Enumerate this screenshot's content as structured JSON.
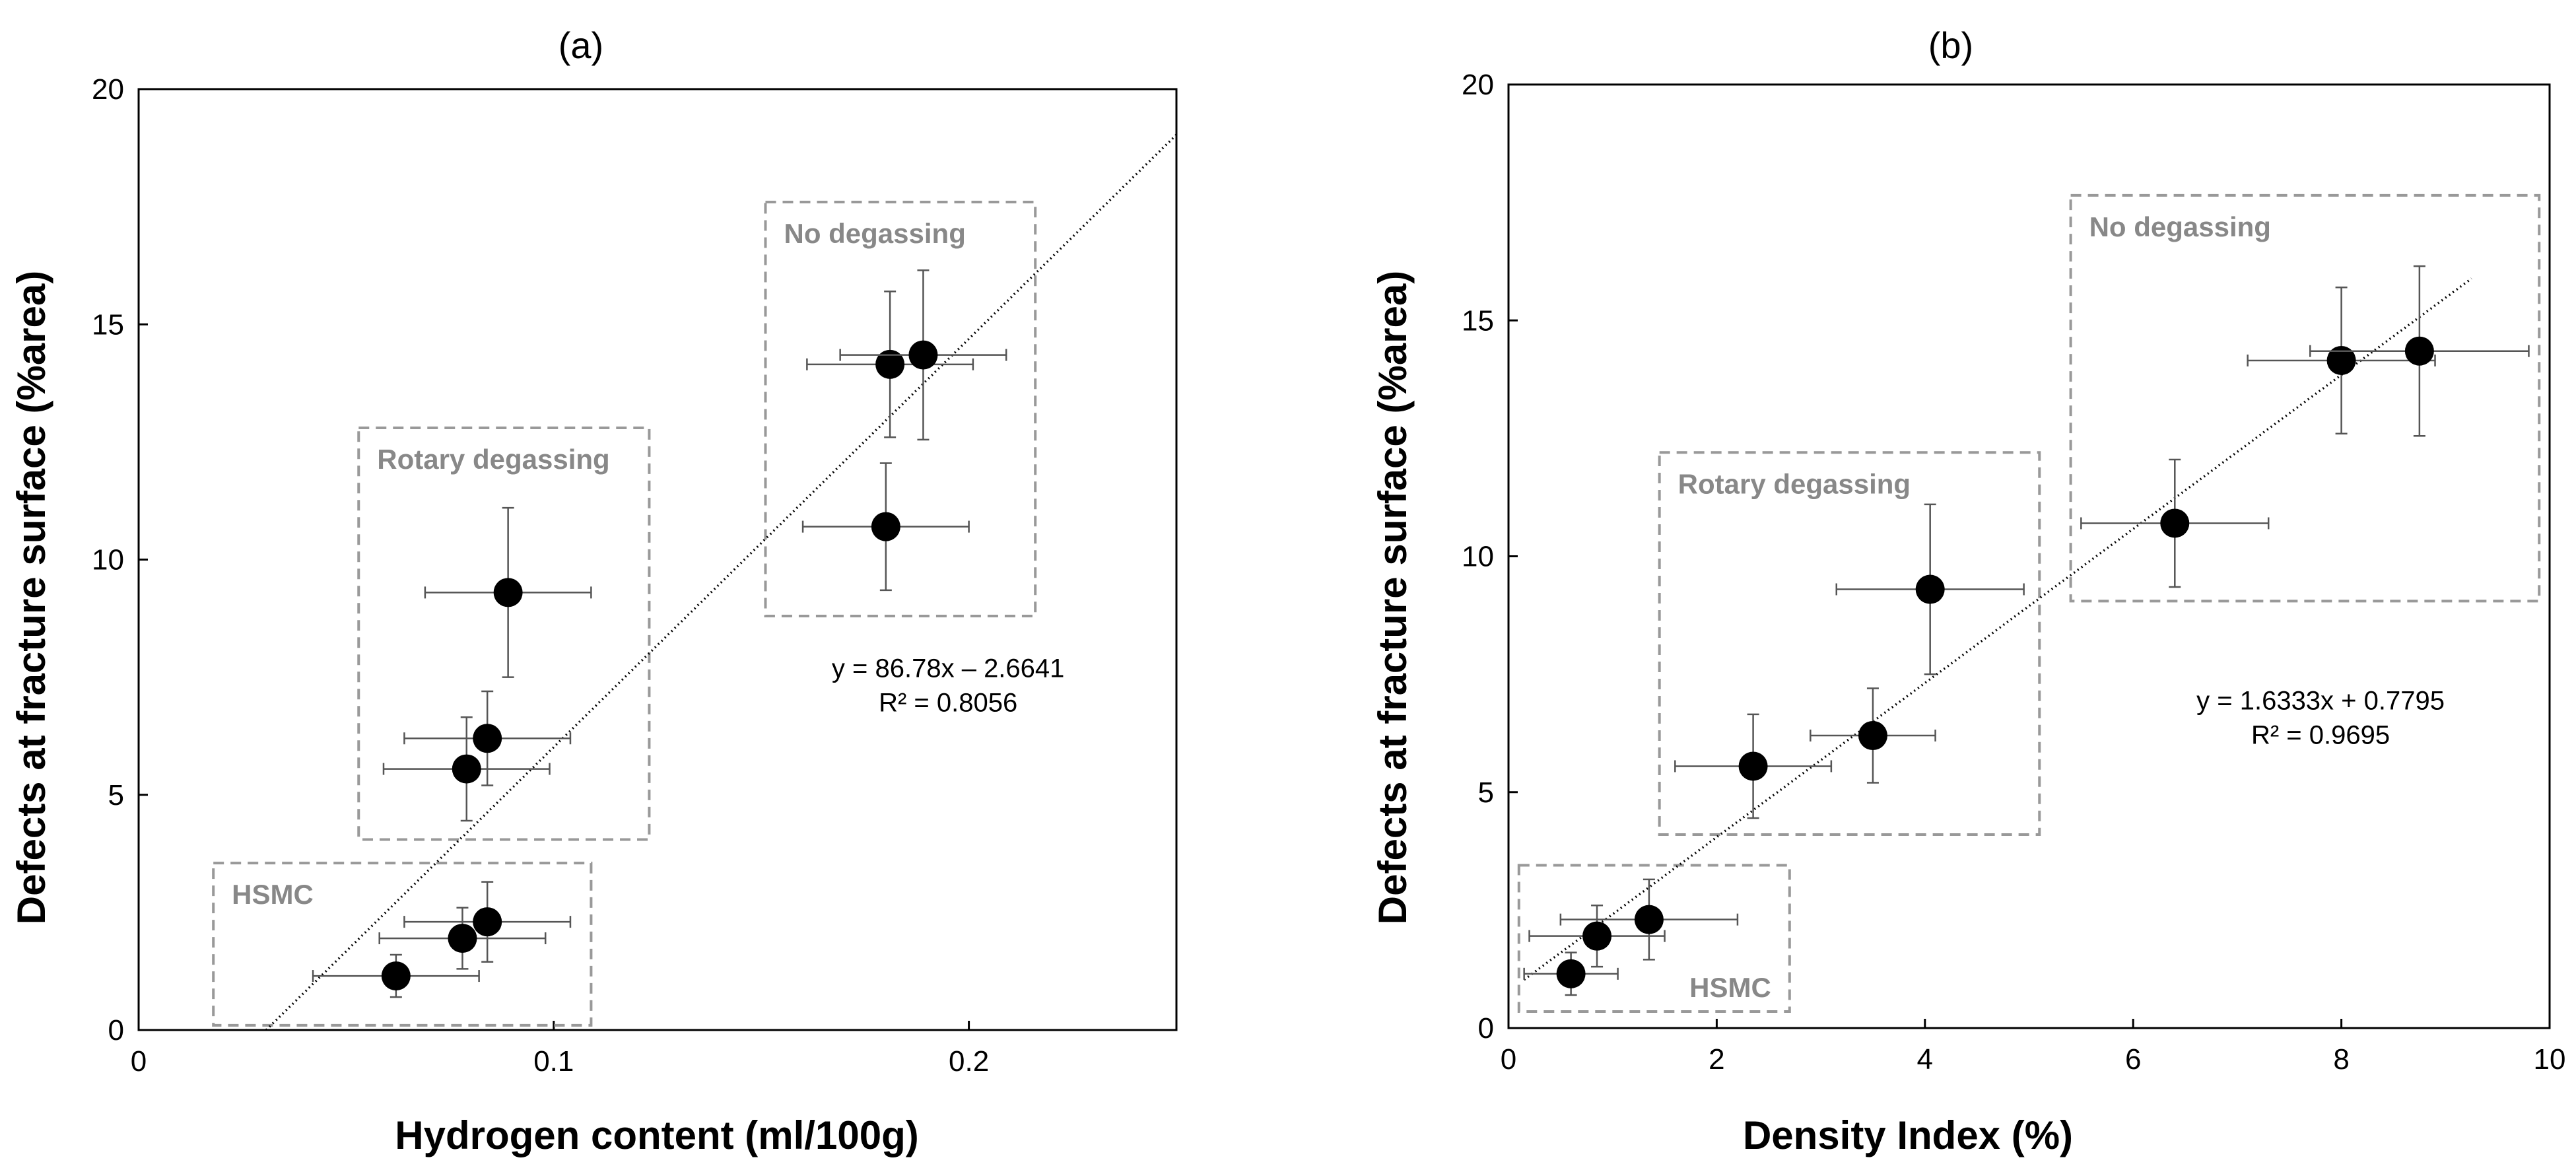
{
  "figure": {
    "colors": {
      "marker": "#000000",
      "errorbar": "#555555",
      "group_box": "#999999",
      "group_label": "#888888",
      "trendline": "#000000",
      "axis": "#000000"
    }
  },
  "chart_data": [
    {
      "type": "scatter",
      "panel_label": "(a)",
      "title": "(a)",
      "xlabel": "Hydrogen content (ml/100g)",
      "ylabel": "Defects at fracture surface (%area)",
      "xlim": [
        0,
        0.25
      ],
      "ylim": [
        0,
        20
      ],
      "xticks": [
        0,
        0.1,
        0.2
      ],
      "xtick_labels": [
        "0",
        "0.1",
        "0.2"
      ],
      "yticks": [
        0,
        5,
        10,
        15,
        20
      ],
      "ytick_labels": [
        "0",
        "5",
        "10",
        "15",
        "20"
      ],
      "grid": false,
      "points": [
        {
          "group": "HSMC",
          "x": 0.062,
          "y": 1.15,
          "xerr": 0.02,
          "yerr": 0.45
        },
        {
          "group": "HSMC",
          "x": 0.078,
          "y": 1.95,
          "xerr": 0.02,
          "yerr": 0.65
        },
        {
          "group": "HSMC",
          "x": 0.084,
          "y": 2.3,
          "xerr": 0.02,
          "yerr": 0.85
        },
        {
          "group": "Rotary degassing",
          "x": 0.079,
          "y": 5.55,
          "xerr": 0.02,
          "yerr": 1.1
        },
        {
          "group": "Rotary degassing",
          "x": 0.084,
          "y": 6.2,
          "xerr": 0.02,
          "yerr": 1.0
        },
        {
          "group": "Rotary degassing",
          "x": 0.089,
          "y": 9.3,
          "xerr": 0.02,
          "yerr": 1.8
        },
        {
          "group": "No degassing",
          "x": 0.18,
          "y": 10.7,
          "xerr": 0.02,
          "yerr": 1.35
        },
        {
          "group": "No degassing",
          "x": 0.181,
          "y": 14.15,
          "xerr": 0.02,
          "yerr": 1.55
        },
        {
          "group": "No degassing",
          "x": 0.189,
          "y": 14.35,
          "xerr": 0.02,
          "yerr": 1.8
        }
      ],
      "groups": [
        {
          "name": "HSMC",
          "label": "HSMC",
          "x0": 0.018,
          "x1": 0.109,
          "y0": 0.1,
          "y1": 3.55,
          "label_pos": "top-left"
        },
        {
          "name": "Rotary degassing",
          "label": "Rotary degassing",
          "x0": 0.053,
          "x1": 0.123,
          "y0": 4.05,
          "y1": 12.8,
          "label_pos": "top-left"
        },
        {
          "name": "No degassing",
          "label": "No degassing",
          "x0": 0.151,
          "x1": 0.216,
          "y0": 8.8,
          "y1": 17.6,
          "label_pos": "top-left"
        }
      ],
      "trendline": {
        "slope": 86.78,
        "intercept": -2.6641,
        "x_start": 0.0307,
        "x_end": 0.25
      },
      "equation": "y = 86.78x – 2.6641",
      "r2": "R² = 0.8056",
      "equation_anchor": {
        "x": 0.195,
        "y": 7.5
      }
    },
    {
      "type": "scatter",
      "panel_label": "(b)",
      "title": "(b)",
      "xlabel": "Density Index (%)",
      "ylabel": "Defects at fracture surface (%area)",
      "xlim": [
        0,
        10
      ],
      "ylim": [
        0,
        20
      ],
      "xticks": [
        0,
        2,
        4,
        6,
        8,
        10
      ],
      "xtick_labels": [
        "0",
        "2",
        "4",
        "6",
        "8",
        "10"
      ],
      "yticks": [
        0,
        5,
        10,
        15,
        20
      ],
      "ytick_labels": [
        "0",
        "5",
        "10",
        "15",
        "20"
      ],
      "grid": false,
      "points": [
        {
          "group": "HSMC",
          "x": 0.6,
          "y": 1.15,
          "xerr": 0.45,
          "yerr": 0.45
        },
        {
          "group": "HSMC",
          "x": 0.85,
          "y": 1.95,
          "xerr": 0.65,
          "yerr": 0.65
        },
        {
          "group": "HSMC",
          "x": 1.35,
          "y": 2.3,
          "xerr": 0.85,
          "yerr": 0.85
        },
        {
          "group": "Rotary degassing",
          "x": 2.35,
          "y": 5.55,
          "xerr": 0.75,
          "yerr": 1.1
        },
        {
          "group": "Rotary degassing",
          "x": 3.5,
          "y": 6.2,
          "xerr": 0.6,
          "yerr": 1.0
        },
        {
          "group": "Rotary degassing",
          "x": 4.05,
          "y": 9.3,
          "xerr": 0.9,
          "yerr": 1.8
        },
        {
          "group": "No degassing",
          "x": 6.4,
          "y": 10.7,
          "xerr": 0.9,
          "yerr": 1.35
        },
        {
          "group": "No degassing",
          "x": 8.0,
          "y": 14.15,
          "xerr": 0.9,
          "yerr": 1.55
        },
        {
          "group": "No degassing",
          "x": 8.75,
          "y": 14.35,
          "xerr": 1.05,
          "yerr": 1.8
        }
      ],
      "groups": [
        {
          "name": "HSMC",
          "label": "HSMC",
          "x0": 0.1,
          "x1": 2.7,
          "y0": 0.35,
          "y1": 3.45,
          "label_pos": "bottom-right"
        },
        {
          "name": "Rotary degassing",
          "label": "Rotary degassing",
          "x0": 1.45,
          "x1": 5.1,
          "y0": 4.1,
          "y1": 12.2,
          "label_pos": "top-left"
        },
        {
          "name": "No degassing",
          "label": "No degassing",
          "x0": 5.4,
          "x1": 9.9,
          "y0": 9.05,
          "y1": 17.65,
          "label_pos": "top-left"
        }
      ],
      "trendline": {
        "slope": 1.6333,
        "intercept": 0.7795,
        "x_start": 0.15,
        "x_end": 9.25
      },
      "equation": "y = 1.6333x + 0.7795",
      "r2": "R² = 0.9695",
      "equation_anchor": {
        "x": 7.8,
        "y": 6.75
      }
    }
  ]
}
